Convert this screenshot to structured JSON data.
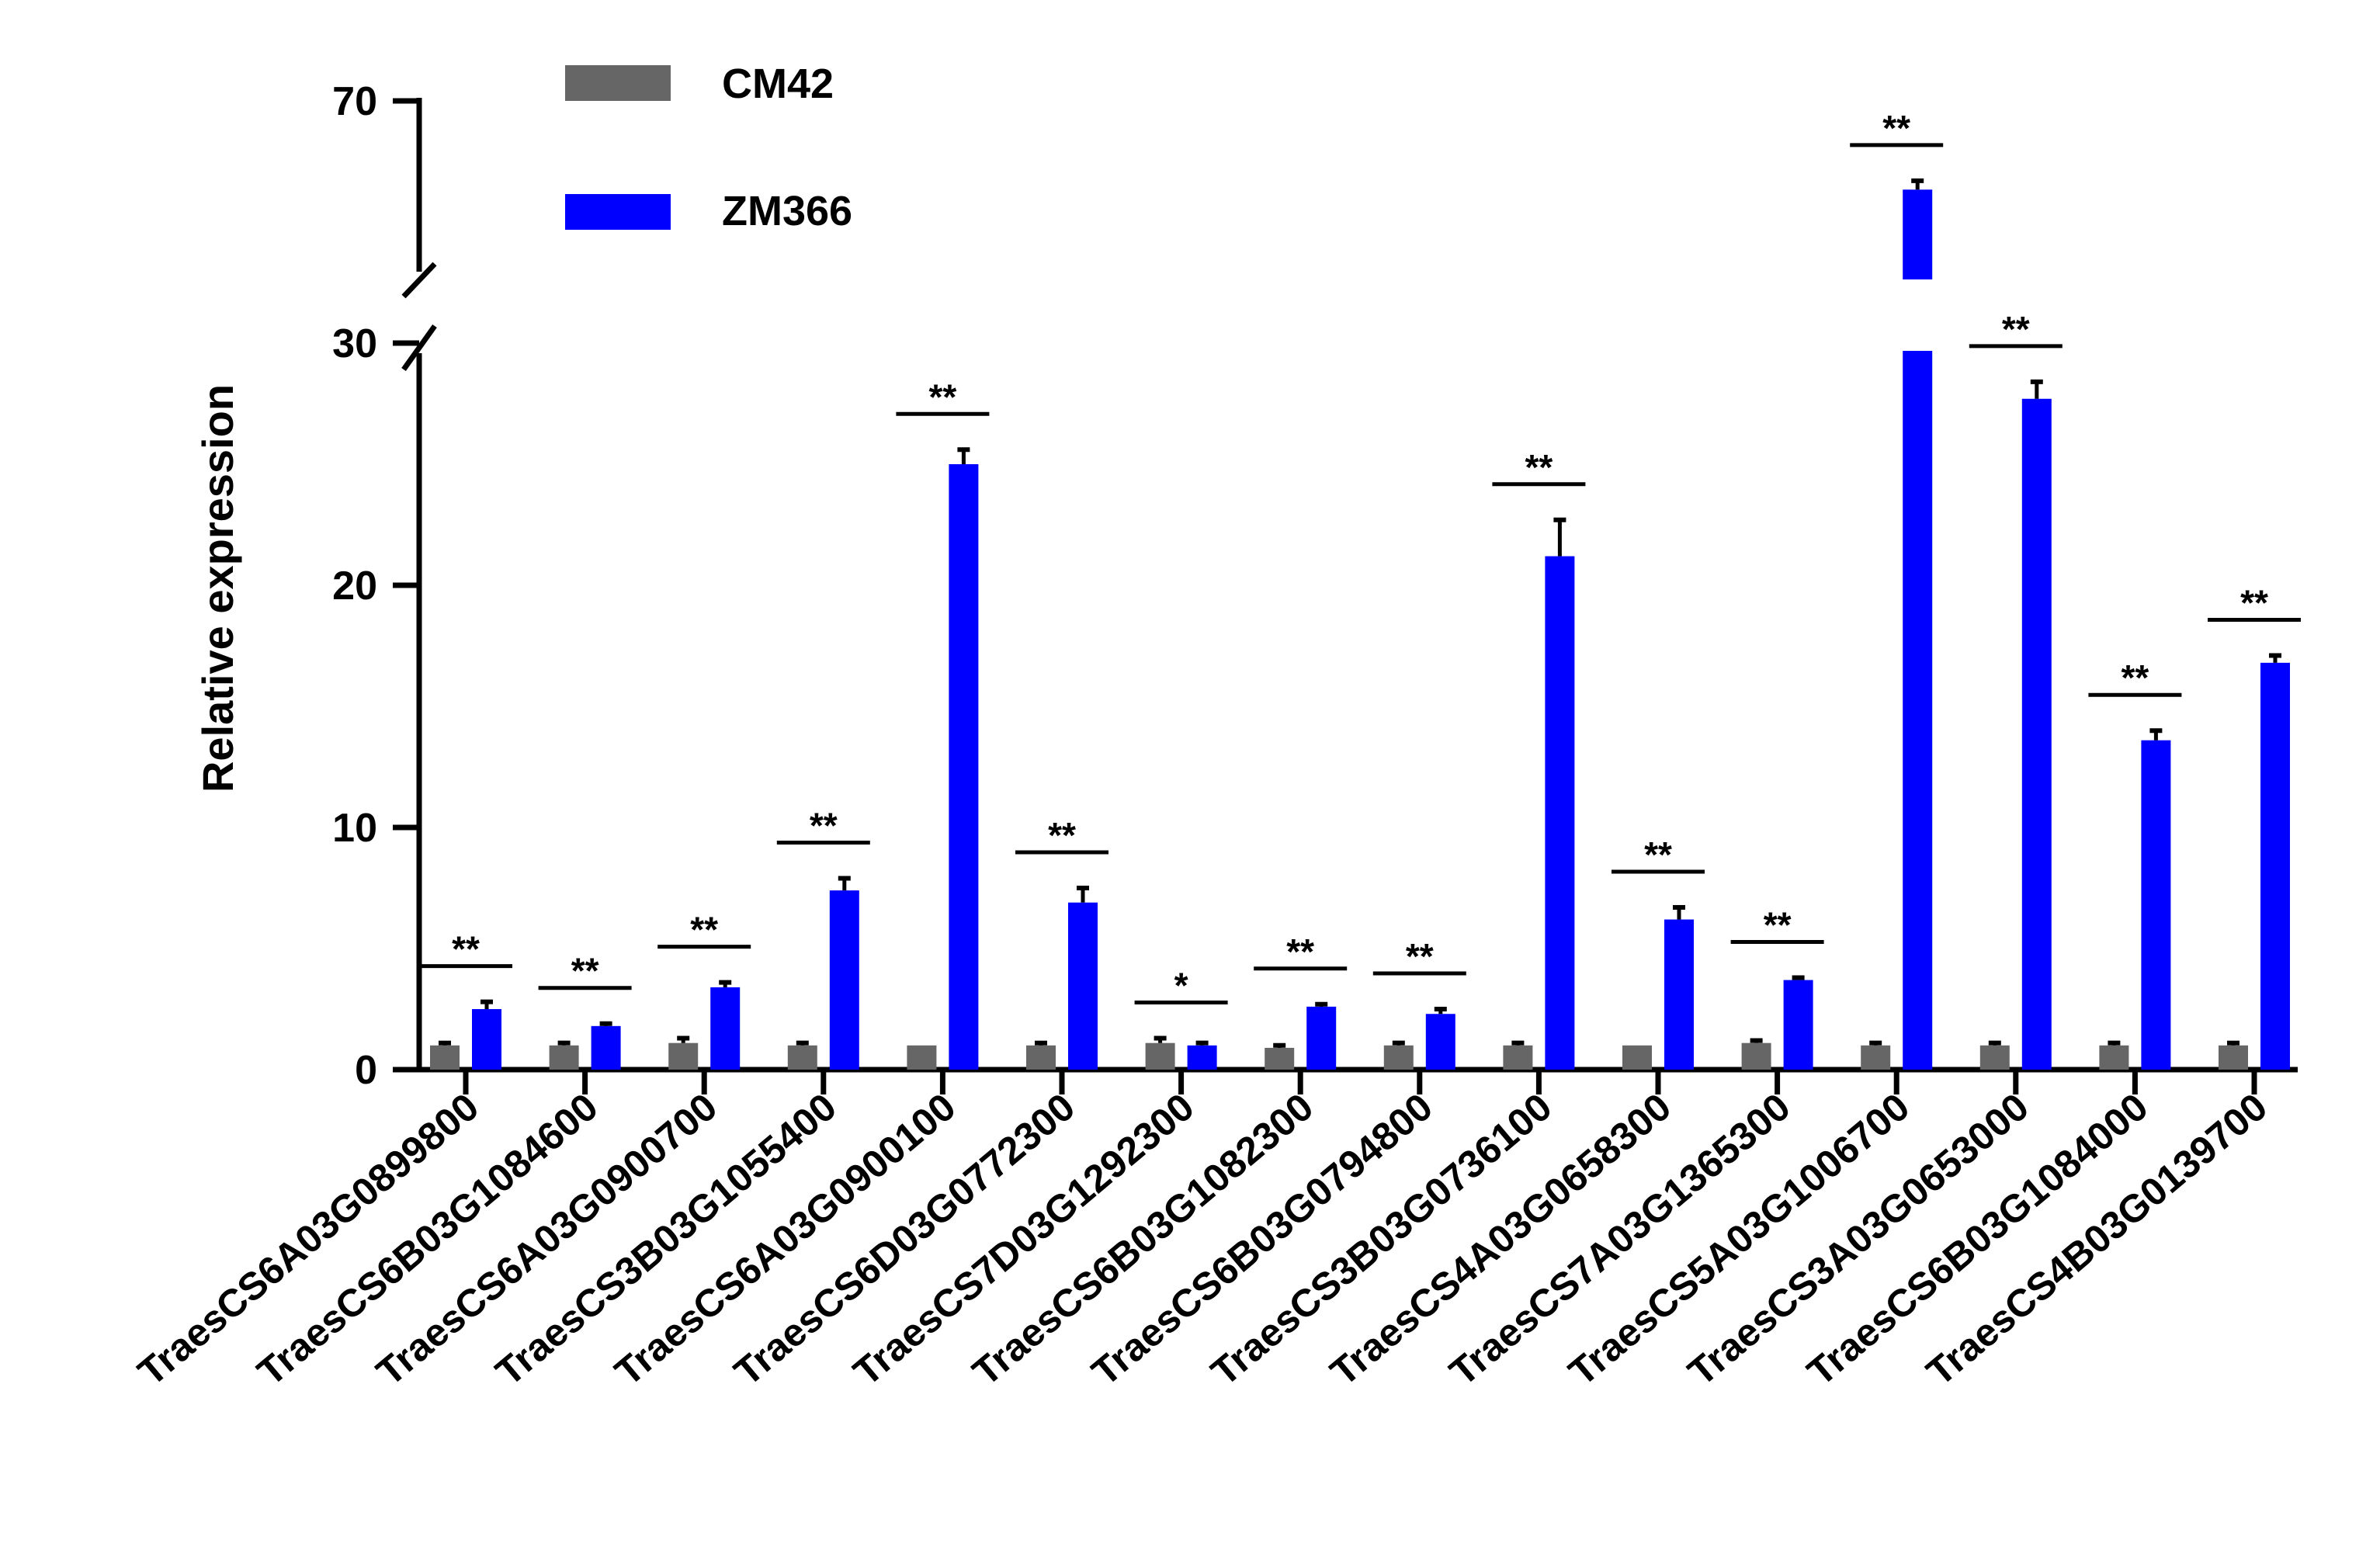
{
  "chart_data": {
    "type": "bar",
    "title": "",
    "xlabel": "",
    "ylabel": "Relative expression",
    "y_axis": {
      "lower_segment": [
        0,
        30
      ],
      "upper_segment_label_ticks": [
        70
      ],
      "tick_labels": [
        "0",
        "10",
        "20",
        "30",
        "70"
      ],
      "broken": true
    },
    "categories": [
      "TraesCS6A03G0899800",
      "TraesCS6B03G1084600",
      "TraesCS6A03G0900700",
      "TraesCS3B03G1055400",
      "TraesCS6A03G0900100",
      "TraesCS6D03G0772300",
      "TraesCS7D03G1292300",
      "TraesCS6B03G1082300",
      "TraesCS6B03G0794800",
      "TraesCS3B03G0736100",
      "TraesCS4A03G0658300",
      "TraesCS7A03G1365300",
      "TraesCS5A03G1006700",
      "TraesCS3A03G0653000",
      "TraesCS6B03G1084000",
      "TraesCS4B03G0139700"
    ],
    "series": [
      {
        "name": "CM42",
        "color": "#666666",
        "values": [
          1.0,
          1.0,
          1.1,
          1.0,
          1.0,
          1.0,
          1.1,
          0.9,
          1.0,
          1.0,
          1.0,
          1.1,
          1.0,
          1.0,
          1.0,
          1.0
        ],
        "errors": [
          0.1,
          0.1,
          0.2,
          0.1,
          0.0,
          0.1,
          0.2,
          0.1,
          0.1,
          0.1,
          0.0,
          0.1,
          0.1,
          0.1,
          0.1,
          0.1
        ]
      },
      {
        "name": "ZM366",
        "color": "#0000ff",
        "values": [
          2.5,
          1.8,
          3.4,
          7.4,
          25.0,
          6.9,
          1.0,
          2.6,
          2.3,
          21.2,
          6.2,
          3.7,
          62.0,
          27.7,
          13.6,
          16.8
        ],
        "errors": [
          0.3,
          0.1,
          0.2,
          0.5,
          0.6,
          0.6,
          0.1,
          0.1,
          0.2,
          1.5,
          0.5,
          0.1,
          0.8,
          0.7,
          0.4,
          0.3
        ]
      }
    ],
    "significance": [
      "**",
      "**",
      "**",
      "**",
      "**",
      "**",
      "*",
      "**",
      "**",
      "**",
      "**",
      "**",
      "**",
      "**",
      "**",
      "**"
    ],
    "legend_position": "top-left"
  }
}
